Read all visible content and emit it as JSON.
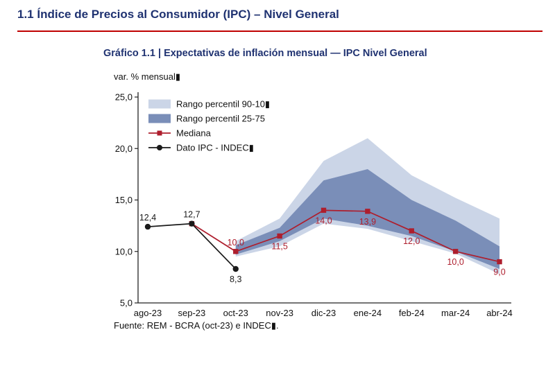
{
  "page": {
    "section_title": "1.1 Índice de Precios al Consumidor (IPC) – Nivel General",
    "chart_title": "Gráfico 1.1 | Expectativas de inflación mensual — IPC Nivel General",
    "axis_unit_label": "var. % mensual▮",
    "source": "Fuente: REM - BCRA (oct-23) e INDEC▮."
  },
  "colors": {
    "heading_navy": "#1f3271",
    "rule_red": "#c00000",
    "band_90_10": "#cbd5e7",
    "band_25_75": "#7a8eb8",
    "mediana_red": "#ae1e2d",
    "ipc_black": "#1a1a1a",
    "axis_text": "#111111"
  },
  "legend": [
    {
      "label": "Rango percentil 90-10▮",
      "swatch": "area",
      "color": "#cbd5e7"
    },
    {
      "label": "Rango percentil 25-75",
      "swatch": "area",
      "color": "#7a8eb8"
    },
    {
      "label": "Mediana",
      "swatch": "line-square",
      "color": "#ae1e2d"
    },
    {
      "label": "Dato IPC - INDEC▮",
      "swatch": "line-circle",
      "color": "#1a1a1a"
    }
  ],
  "chart_data": {
    "type": "line",
    "title": "Gráfico 1.1 | Expectativas de inflación mensual — IPC Nivel General",
    "ylabel": "var. % mensual",
    "ylim": [
      5,
      25
    ],
    "yticks": [
      25,
      20,
      15,
      10,
      5
    ],
    "grid": false,
    "legend_position": "upper-left-inside",
    "categories": [
      "ago-23",
      "sep-23",
      "oct-23",
      "nov-23",
      "dic-23",
      "ene-24",
      "feb-24",
      "mar-24",
      "abr-24"
    ],
    "bands": [
      {
        "name": "Rango percentil 90-10",
        "color": "#cbd5e7",
        "points": [
          {
            "x": "oct-23",
            "low": 9.5,
            "high": 11.0
          },
          {
            "x": "nov-23",
            "low": 10.5,
            "high": 13.2
          },
          {
            "x": "dic-23",
            "low": 12.7,
            "high": 18.8
          },
          {
            "x": "ene-24",
            "low": 12.2,
            "high": 21.0
          },
          {
            "x": "feb-24",
            "low": 11.0,
            "high": 17.4
          },
          {
            "x": "mar-24",
            "low": 9.8,
            "high": 15.2
          },
          {
            "x": "abr-24",
            "low": 7.8,
            "high": 13.2
          }
        ]
      },
      {
        "name": "Rango percentil 25-75",
        "color": "#7a8eb8",
        "points": [
          {
            "x": "oct-23",
            "low": 9.7,
            "high": 10.6
          },
          {
            "x": "nov-23",
            "low": 11.0,
            "high": 12.3
          },
          {
            "x": "dic-23",
            "low": 13.2,
            "high": 16.9
          },
          {
            "x": "ene-24",
            "low": 12.5,
            "high": 18.0
          },
          {
            "x": "feb-24",
            "low": 11.5,
            "high": 15.0
          },
          {
            "x": "mar-24",
            "low": 10.0,
            "high": 13.0
          },
          {
            "x": "abr-24",
            "low": 8.3,
            "high": 10.5
          }
        ]
      }
    ],
    "series": [
      {
        "name": "Mediana",
        "color": "#ae1e2d",
        "marker": "square",
        "points": [
          {
            "x": "sep-23",
            "y": 12.7,
            "label": null,
            "label_pos": null
          },
          {
            "x": "oct-23",
            "y": 10.0,
            "label": "10,0",
            "label_pos": "above"
          },
          {
            "x": "nov-23",
            "y": 11.5,
            "label": "11,5",
            "label_pos": "below"
          },
          {
            "x": "dic-23",
            "y": 14.0,
            "label": "14,0",
            "label_pos": "below"
          },
          {
            "x": "ene-24",
            "y": 13.9,
            "label": "13,9",
            "label_pos": "below"
          },
          {
            "x": "feb-24",
            "y": 12.0,
            "label": "12,0",
            "label_pos": "below"
          },
          {
            "x": "mar-24",
            "y": 10.0,
            "label": "10,0",
            "label_pos": "below"
          },
          {
            "x": "abr-24",
            "y": 9.0,
            "label": "9,0",
            "label_pos": "below"
          }
        ]
      },
      {
        "name": "Dato IPC - INDEC",
        "color": "#1a1a1a",
        "marker": "circle",
        "points": [
          {
            "x": "ago-23",
            "y": 12.4,
            "label": "12,4",
            "label_pos": "above"
          },
          {
            "x": "sep-23",
            "y": 12.7,
            "label": "12,7",
            "label_pos": "above"
          },
          {
            "x": "oct-23",
            "y": 8.3,
            "label": "8,3",
            "label_pos": "below"
          }
        ]
      }
    ]
  }
}
